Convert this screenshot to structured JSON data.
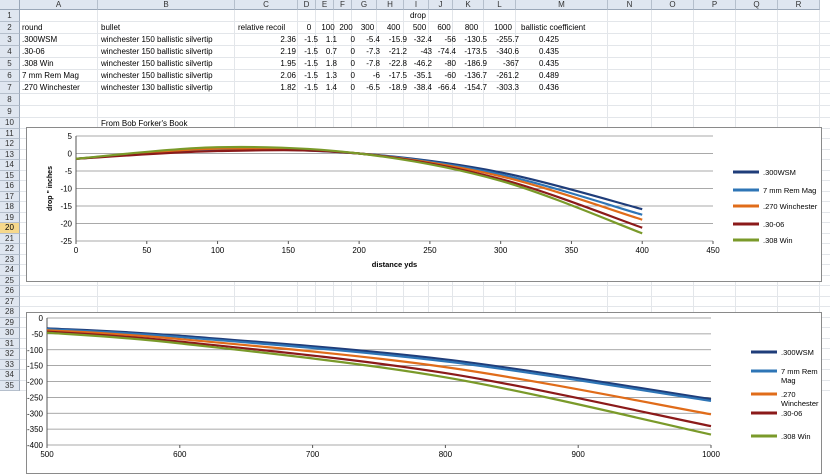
{
  "columns": [
    "A",
    "B",
    "C",
    "D",
    "E",
    "F",
    "G",
    "H",
    "I",
    "J",
    "K",
    "L",
    "M",
    "N",
    "O",
    "P",
    "Q",
    "R"
  ],
  "rows": [
    "1",
    "2",
    "3",
    "4",
    "5",
    "6",
    "7",
    "8",
    "9",
    "10",
    "11",
    "12",
    "13",
    "14",
    "15",
    "16",
    "17",
    "18",
    "19",
    "20",
    "21",
    "22",
    "23",
    "24",
    "25",
    "26",
    "27",
    "28",
    "29",
    "30",
    "31",
    "32",
    "33",
    "34",
    "35"
  ],
  "selected_row": "20",
  "sheet": {
    "drop_header": "drop",
    "headers": [
      "round",
      "bullet",
      "relative recoil",
      "0",
      "100",
      "200",
      "300",
      "400",
      "500",
      "600",
      "800",
      "1000",
      "ballistic coefficient"
    ],
    "data": [
      [
        ".300WSM",
        "winchester 150 ballistic silvertip",
        "2.36",
        "-1.5",
        "1.1",
        "0",
        "-5.4",
        "-15.9",
        "-32.4",
        "-56",
        "-130.5",
        "-255.7",
        "0.425"
      ],
      [
        ".30-06",
        "winchester 150 ballistic silvertip",
        "2.19",
        "-1.5",
        "0.7",
        "0",
        "-7.3",
        "-21.2",
        "-43",
        "-74.4",
        "-173.5",
        "-340.6",
        "0.435"
      ],
      [
        ".308 Win",
        "winchester 150 ballistic silvertip",
        "1.95",
        "-1.5",
        "1.8",
        "0",
        "-7.8",
        "-22.8",
        "-46.2",
        "-80",
        "-186.9",
        "-367",
        "0.435"
      ],
      [
        "7 mm Rem Mag",
        "winchester 150 ballistic silvertip",
        "2.06",
        "-1.5",
        "1.3",
        "0",
        "-6",
        "-17.5",
        "-35.1",
        "-60",
        "-136.7",
        "-261.2",
        "0.489"
      ],
      [
        ".270 Winchester",
        "winchester 130 ballistic silvertip",
        "1.82",
        "-1.5",
        "1.4",
        "0",
        "-6.5",
        "-18.9",
        "-38.4",
        "-66.4",
        "-154.7",
        "-303.3",
        "0.436"
      ]
    ],
    "note": "From Bob Forker's Book"
  },
  "chart_data": [
    {
      "type": "line",
      "ylabel": "drop \" inches",
      "xlabel": "distance yds",
      "xlim": [
        0,
        450
      ],
      "ylim": [
        -25,
        5
      ],
      "xticks": [
        0,
        50,
        100,
        150,
        200,
        250,
        300,
        350,
        400,
        450
      ],
      "yticks": [
        5,
        0,
        -5,
        -10,
        -15,
        -20,
        -25
      ],
      "grid": "horizontal",
      "legend": "right",
      "series": [
        {
          "name": ".300WSM",
          "color": "#1f3d7a",
          "x": [
            0,
            100,
            200,
            300,
            400
          ],
          "values": [
            -1.5,
            1.1,
            0,
            -5.4,
            -15.9
          ]
        },
        {
          "name": "7 mm Rem Mag",
          "color": "#2e75b6",
          "x": [
            0,
            100,
            200,
            300,
            400
          ],
          "values": [
            -1.5,
            1.3,
            0,
            -6,
            -17.5
          ]
        },
        {
          "name": ".270 Winchester",
          "color": "#e06c1a",
          "x": [
            0,
            100,
            200,
            300,
            400
          ],
          "values": [
            -1.5,
            1.4,
            0,
            -6.5,
            -18.9
          ]
        },
        {
          "name": ".30-06",
          "color": "#8b1a1a",
          "x": [
            0,
            100,
            200,
            300,
            400
          ],
          "values": [
            -1.5,
            0.7,
            0,
            -7.3,
            -21.2
          ]
        },
        {
          "name": ".308 Win",
          "color": "#7a9a2a",
          "x": [
            0,
            100,
            200,
            300,
            400
          ],
          "values": [
            -1.5,
            1.8,
            0,
            -7.8,
            -22.8
          ]
        }
      ]
    },
    {
      "type": "line",
      "xlim": [
        500,
        1000
      ],
      "ylim": [
        -400,
        0
      ],
      "xticks": [
        500,
        600,
        700,
        800,
        900,
        1000
      ],
      "yticks": [
        0,
        -50,
        -100,
        -150,
        -200,
        -250,
        -300,
        -350,
        -400
      ],
      "grid": "horizontal",
      "legend": "right",
      "series": [
        {
          "name": ".300WSM",
          "color": "#1f3d7a",
          "x": [
            500,
            600,
            800,
            1000
          ],
          "values": [
            -32.4,
            -56,
            -130.5,
            -255.7
          ]
        },
        {
          "name": "7 mm Rem Mag",
          "color": "#2e75b6",
          "x": [
            500,
            600,
            800,
            1000
          ],
          "values": [
            -35.1,
            -60,
            -136.7,
            -261.2
          ]
        },
        {
          "name": ".270 Winchester",
          "color": "#e06c1a",
          "x": [
            500,
            600,
            800,
            1000
          ],
          "values": [
            -38.4,
            -66.4,
            -154.7,
            -303.3
          ]
        },
        {
          "name": ".30-06",
          "color": "#8b1a1a",
          "x": [
            500,
            600,
            800,
            1000
          ],
          "values": [
            -43,
            -74.4,
            -173.5,
            -340.6
          ]
        },
        {
          "name": ".308 Win",
          "color": "#7a9a2a",
          "x": [
            500,
            600,
            800,
            1000
          ],
          "values": [
            -46.2,
            -80,
            -186.9,
            -367
          ]
        }
      ]
    }
  ]
}
